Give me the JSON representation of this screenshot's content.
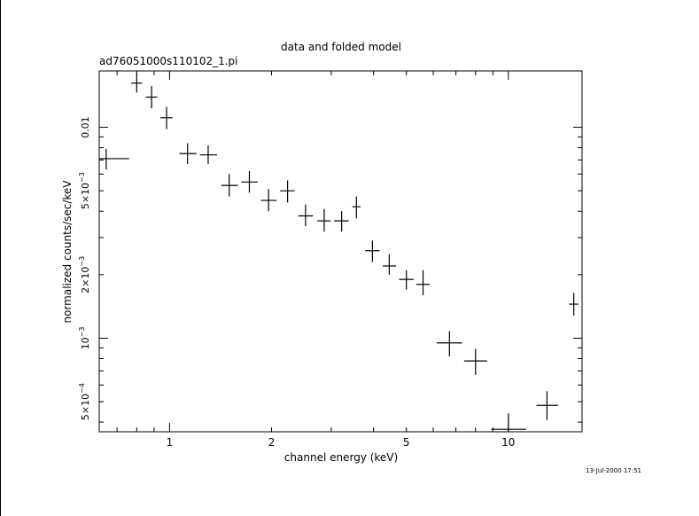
{
  "chart_data": {
    "type": "scatter",
    "title": "data and folded model",
    "subtitle": "ad76051000s110102_1.pi",
    "xlabel": "channel energy (keV)",
    "ylabel": "normalized counts/sec/keV",
    "x_scale": "log",
    "y_scale": "log",
    "xlim": [
      0.62,
      16.5
    ],
    "ylim": [
      0.00036,
      0.0185
    ],
    "x_tick_labels": [
      "1",
      "2",
      "5",
      "10"
    ],
    "x_tick_values": [
      1,
      2,
      5,
      10
    ],
    "y_tick_labels": [
      {
        "mantissa": "0.01",
        "exp": "",
        "value": 0.01
      },
      {
        "mantissa": "5×10",
        "exp": "−3",
        "value": 0.005
      },
      {
        "mantissa": "2×10",
        "exp": "−3",
        "value": 0.002
      },
      {
        "mantissa": "10",
        "exp": "−3",
        "value": 0.001
      },
      {
        "mantissa": "5×10",
        "exp": "−4",
        "value": 0.0005
      }
    ],
    "points": [
      {
        "x": 0.65,
        "xlo": 0.59,
        "xhi": 0.76,
        "y": 0.0071,
        "ylo": 0.0063,
        "yhi": 0.0079
      },
      {
        "x": 0.8,
        "xlo": 0.77,
        "xhi": 0.83,
        "y": 0.0162,
        "ylo": 0.0146,
        "yhi": 0.0181
      },
      {
        "x": 0.885,
        "xlo": 0.85,
        "xhi": 0.92,
        "y": 0.0139,
        "ylo": 0.0123,
        "yhi": 0.0157
      },
      {
        "x": 0.98,
        "xlo": 0.94,
        "xhi": 1.02,
        "y": 0.0111,
        "ylo": 0.0098,
        "yhi": 0.0125
      },
      {
        "x": 1.13,
        "xlo": 1.07,
        "xhi": 1.2,
        "y": 0.0075,
        "ylo": 0.0067,
        "yhi": 0.0084
      },
      {
        "x": 1.3,
        "xlo": 1.23,
        "xhi": 1.38,
        "y": 0.0074,
        "ylo": 0.0067,
        "yhi": 0.0082
      },
      {
        "x": 1.5,
        "xlo": 1.42,
        "xhi": 1.59,
        "y": 0.0053,
        "ylo": 0.0047,
        "yhi": 0.006
      },
      {
        "x": 1.72,
        "xlo": 1.63,
        "xhi": 1.82,
        "y": 0.0055,
        "ylo": 0.0049,
        "yhi": 0.0062
      },
      {
        "x": 1.96,
        "xlo": 1.86,
        "xhi": 2.07,
        "y": 0.0045,
        "ylo": 0.004,
        "yhi": 0.0051
      },
      {
        "x": 2.23,
        "xlo": 2.12,
        "xhi": 2.34,
        "y": 0.005,
        "ylo": 0.0044,
        "yhi": 0.0056
      },
      {
        "x": 2.52,
        "xlo": 2.4,
        "xhi": 2.65,
        "y": 0.0038,
        "ylo": 0.0034,
        "yhi": 0.0043
      },
      {
        "x": 2.86,
        "xlo": 2.73,
        "xhi": 2.99,
        "y": 0.0036,
        "ylo": 0.0032,
        "yhi": 0.0041
      },
      {
        "x": 3.22,
        "xlo": 3.06,
        "xhi": 3.38,
        "y": 0.0036,
        "ylo": 0.0032,
        "yhi": 0.004
      },
      {
        "x": 3.56,
        "xlo": 3.46,
        "xhi": 3.66,
        "y": 0.0042,
        "ylo": 0.0037,
        "yhi": 0.0047
      },
      {
        "x": 3.97,
        "xlo": 3.78,
        "xhi": 4.17,
        "y": 0.0026,
        "ylo": 0.0023,
        "yhi": 0.0029
      },
      {
        "x": 4.45,
        "xlo": 4.26,
        "xhi": 4.66,
        "y": 0.0022,
        "ylo": 0.002,
        "yhi": 0.0025
      },
      {
        "x": 5.0,
        "xlo": 4.76,
        "xhi": 5.25,
        "y": 0.0019,
        "ylo": 0.0017,
        "yhi": 0.0021
      },
      {
        "x": 5.6,
        "xlo": 5.35,
        "xhi": 5.86,
        "y": 0.0018,
        "ylo": 0.0016,
        "yhi": 0.0021
      },
      {
        "x": 6.7,
        "xlo": 6.15,
        "xhi": 7.3,
        "y": 0.00095,
        "ylo": 0.00082,
        "yhi": 0.00108
      },
      {
        "x": 8.0,
        "xlo": 7.4,
        "xhi": 8.65,
        "y": 0.00078,
        "ylo": 0.00067,
        "yhi": 0.00089
      },
      {
        "x": 10.0,
        "xlo": 8.9,
        "xhi": 11.3,
        "y": 0.00037,
        "ylo": 0.00031,
        "yhi": 0.00044
      },
      {
        "x": 13.0,
        "xlo": 12.1,
        "xhi": 14.0,
        "y": 0.00048,
        "ylo": 0.00041,
        "yhi": 0.00056
      },
      {
        "x": 15.6,
        "xlo": 15.1,
        "xhi": 16.1,
        "y": 0.00145,
        "ylo": 0.00128,
        "yhi": 0.00164
      }
    ],
    "grid": false,
    "timestamp": "13-Jul-2000 17:51"
  }
}
